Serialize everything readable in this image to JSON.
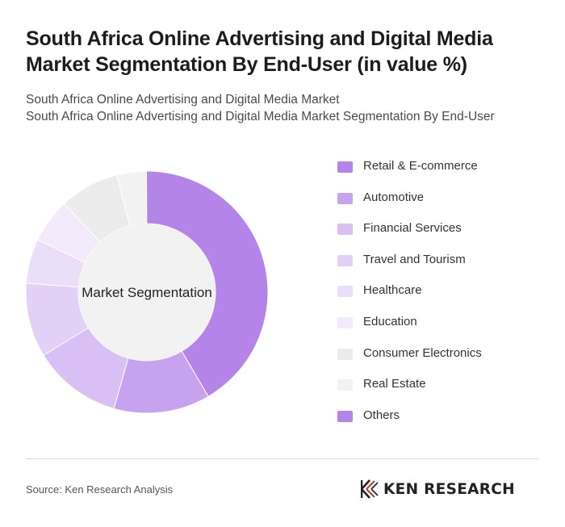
{
  "header": {
    "title": "South Africa Online Advertising and Digital Media Market Segmentation By End-User (in value %)",
    "subtitle_line1": "South Africa Online Advertising and Digital Media Market",
    "subtitle_line2": "South Africa Online Advertising and Digital Media Market Segmentation By End-User"
  },
  "chart_data": {
    "type": "pie",
    "variant": "donut",
    "center_label": "Market Segmentation",
    "legend_position": "right",
    "categories": [
      "Retail & E-commerce",
      "Automotive",
      "Financial Services",
      "Travel and Tourism",
      "Healthcare",
      "Education",
      "Consumer Electronics",
      "Real Estate",
      "Others"
    ],
    "values": [
      42,
      13,
      12,
      10,
      6,
      6,
      8,
      4,
      0
    ],
    "colors": [
      "#b584e8",
      "#c6a2ef",
      "#d9c0f4",
      "#e2d0f6",
      "#ebdef9",
      "#f2eafb",
      "#ebebeb",
      "#f2f2f2",
      "#b584e8"
    ]
  },
  "footer": {
    "source": "Source: Ken Research Analysis",
    "logo_text": "KEN RESEARCH"
  }
}
